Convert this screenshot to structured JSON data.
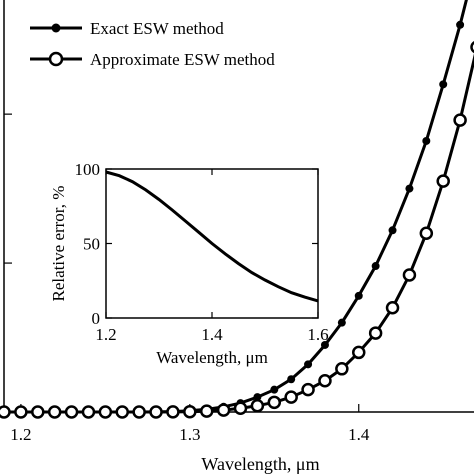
{
  "chart_data": [
    {
      "type": "line",
      "xlabel": "Wavelength, μm",
      "ylabel": "",
      "xlim": [
        1.19,
        1.47
      ],
      "ylim": [
        0,
        2.8
      ],
      "x_ticks": [
        1.2,
        1.3,
        1.4
      ],
      "x_tick_labels": [
        "1.2",
        "1.3",
        "1.4"
      ],
      "y_ticks": [
        1,
        2
      ],
      "y_tick_labels": [
        "",
        ""
      ],
      "legend_position": "top-left",
      "series": [
        {
          "name": "Exact ESW method",
          "marker": "dot",
          "x": [
            1.19,
            1.2,
            1.21,
            1.22,
            1.23,
            1.24,
            1.25,
            1.26,
            1.27,
            1.28,
            1.29,
            1.3,
            1.31,
            1.32,
            1.33,
            1.34,
            1.35,
            1.36,
            1.37,
            1.38,
            1.39,
            1.4,
            1.41,
            1.42,
            1.43,
            1.44,
            1.45,
            1.46,
            1.47
          ],
          "values": [
            0,
            0,
            0,
            0,
            0,
            0,
            0,
            0,
            0,
            0.001,
            0.003,
            0.008,
            0.018,
            0.035,
            0.06,
            0.1,
            0.15,
            0.22,
            0.32,
            0.45,
            0.6,
            0.78,
            0.98,
            1.22,
            1.5,
            1.82,
            2.2,
            2.6,
            3.05
          ]
        },
        {
          "name": "Approximate ESW method",
          "marker": "open-circle",
          "x": [
            1.19,
            1.2,
            1.21,
            1.22,
            1.23,
            1.24,
            1.25,
            1.26,
            1.27,
            1.28,
            1.29,
            1.3,
            1.31,
            1.32,
            1.33,
            1.34,
            1.35,
            1.36,
            1.37,
            1.38,
            1.39,
            1.4,
            1.41,
            1.42,
            1.43,
            1.44,
            1.45,
            1.46,
            1.47
          ],
          "values": [
            0,
            0,
            0,
            0,
            0,
            0,
            0,
            0,
            0,
            0,
            0.001,
            0.002,
            0.006,
            0.013,
            0.025,
            0.042,
            0.065,
            0.1,
            0.15,
            0.21,
            0.29,
            0.4,
            0.53,
            0.7,
            0.92,
            1.2,
            1.55,
            1.96,
            2.45
          ]
        }
      ]
    },
    {
      "type": "line",
      "xlabel": "Wavelength, μm",
      "ylabel": "Relative error, %",
      "xlim": [
        1.2,
        1.6
      ],
      "ylim": [
        0,
        100
      ],
      "x_ticks": [
        1.2,
        1.4,
        1.6
      ],
      "x_tick_labels": [
        "1.2",
        "1.4",
        "1.6"
      ],
      "y_ticks": [
        0,
        50,
        100
      ],
      "y_tick_labels": [
        "0",
        "50",
        "100"
      ],
      "series": [
        {
          "x": [
            1.2,
            1.225,
            1.25,
            1.275,
            1.3,
            1.325,
            1.35,
            1.375,
            1.4,
            1.425,
            1.45,
            1.475,
            1.5,
            1.525,
            1.55,
            1.575,
            1.6
          ],
          "values": [
            98,
            95.5,
            91.5,
            86,
            79.5,
            72.5,
            65,
            57.5,
            50,
            43,
            36.5,
            30.5,
            25.5,
            21,
            17,
            14,
            11.5
          ]
        }
      ]
    }
  ]
}
